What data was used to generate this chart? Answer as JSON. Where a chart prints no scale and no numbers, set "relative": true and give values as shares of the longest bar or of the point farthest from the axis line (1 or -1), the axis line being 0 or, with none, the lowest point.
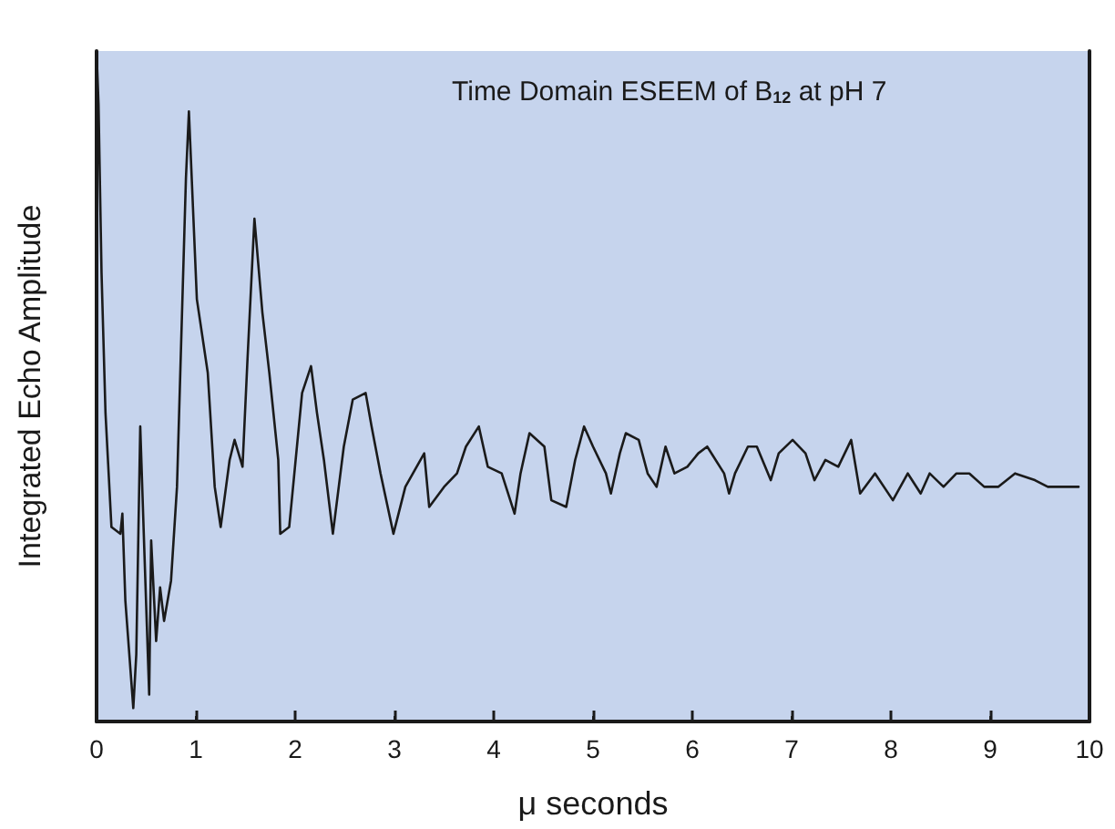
{
  "chart_data": {
    "type": "line",
    "title": "Time Domain ESEEM of B$_{12}$ at pH 7",
    "xlabel": "μ seconds",
    "ylabel": "Integrated Echo Amplitude",
    "relative": true,
    "xlim": [
      0,
      10
    ],
    "xticks": [
      0,
      1,
      2,
      3,
      4,
      5,
      6,
      7,
      8,
      9,
      10
    ],
    "grid": false,
    "marker": "none",
    "line_style": "solid",
    "series": [
      {
        "color": "#1a1a1a",
        "x": [
          0,
          0.02,
          0.05,
          0.09,
          0.15,
          0.24,
          0.26,
          0.29,
          0.37,
          0.4,
          0.44,
          0.48,
          0.53,
          0.55,
          0.6,
          0.64,
          0.68,
          0.75,
          0.81,
          0.9,
          0.93,
          1.01,
          1.04,
          1.12,
          1.19,
          1.25,
          1.34,
          1.39,
          1.47,
          1.52,
          1.59,
          1.67,
          1.74,
          1.83,
          1.85,
          1.94,
          2.07,
          2.16,
          2.22,
          2.29,
          2.38,
          2.49,
          2.58,
          2.71,
          2.77,
          2.86,
          2.99,
          3.11,
          3.3,
          3.35,
          3.5,
          3.63,
          3.72,
          3.85,
          3.94,
          4.08,
          4.21,
          4.27,
          4.36,
          4.51,
          4.58,
          4.73,
          4.82,
          4.91,
          5.0,
          5.13,
          5.18,
          5.27,
          5.33,
          5.46,
          5.55,
          5.64,
          5.73,
          5.82,
          5.95,
          6.06,
          6.15,
          6.32,
          6.37,
          6.43,
          6.56,
          6.65,
          6.79,
          6.87,
          7.01,
          7.14,
          7.23,
          7.34,
          7.47,
          7.6,
          7.69,
          7.84,
          8.02,
          8.17,
          8.3,
          8.39,
          8.53,
          8.66,
          8.79,
          8.94,
          9.08,
          9.25,
          9.45,
          9.58,
          9.76,
          9.89
        ],
        "values": [
          1.0,
          0.92,
          0.67,
          0.46,
          0.29,
          0.28,
          0.31,
          0.18,
          0.02,
          0.1,
          0.44,
          0.26,
          0.04,
          0.27,
          0.12,
          0.2,
          0.15,
          0.21,
          0.35,
          0.81,
          0.91,
          0.63,
          0.6,
          0.52,
          0.35,
          0.29,
          0.39,
          0.42,
          0.38,
          0.54,
          0.75,
          0.61,
          0.52,
          0.39,
          0.28,
          0.29,
          0.49,
          0.53,
          0.46,
          0.39,
          0.28,
          0.41,
          0.48,
          0.49,
          0.44,
          0.37,
          0.28,
          0.35,
          0.4,
          0.32,
          0.35,
          0.37,
          0.41,
          0.44,
          0.38,
          0.37,
          0.31,
          0.37,
          0.43,
          0.41,
          0.33,
          0.32,
          0.39,
          0.44,
          0.41,
          0.37,
          0.34,
          0.4,
          0.43,
          0.42,
          0.37,
          0.35,
          0.41,
          0.37,
          0.38,
          0.4,
          0.41,
          0.37,
          0.34,
          0.37,
          0.41,
          0.41,
          0.36,
          0.4,
          0.42,
          0.4,
          0.36,
          0.39,
          0.38,
          0.42,
          0.34,
          0.37,
          0.33,
          0.37,
          0.34,
          0.37,
          0.35,
          0.37,
          0.37,
          0.35,
          0.35,
          0.37,
          0.36,
          0.35,
          0.35,
          0.35
        ]
      }
    ]
  }
}
